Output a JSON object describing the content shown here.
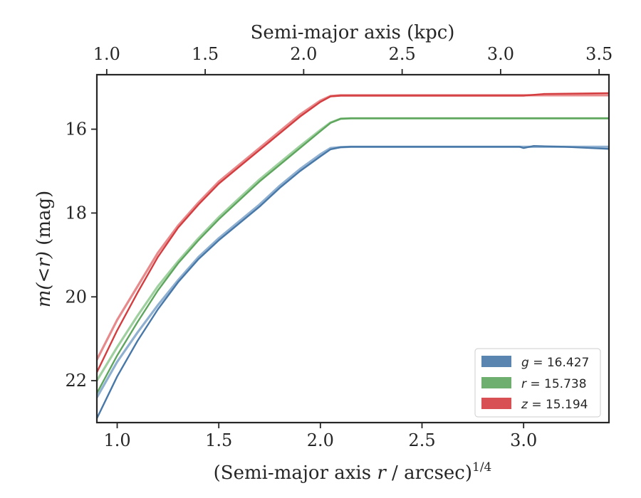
{
  "chart_data": {
    "type": "line",
    "title": "",
    "xlabel_parts": {
      "before": "(Semi-major axis ",
      "var": "r",
      "after": " / arcsec)",
      "exp": "1/4"
    },
    "ylabel_parts": {
      "m": "m",
      "mid": "(<",
      "r": "r",
      "close": ")",
      "unit": " (mag)"
    },
    "top_xlabel": "Semi-major axis (kpc)",
    "xlim": [
      0.9,
      3.42
    ],
    "ylim": [
      23.0,
      14.7
    ],
    "y_inverted": true,
    "top_xlim": [
      0.95,
      3.55
    ],
    "x_ticks": [
      1.0,
      1.5,
      2.0,
      2.5,
      3.0
    ],
    "x_tick_labels": [
      "1.0",
      "1.5",
      "2.0",
      "2.5",
      "3.0"
    ],
    "y_ticks": [
      16,
      18,
      20,
      22
    ],
    "y_tick_labels": [
      "16",
      "18",
      "20",
      "22"
    ],
    "top_x_ticks": [
      1.0,
      1.5,
      2.0,
      2.5,
      3.0,
      3.5
    ],
    "top_x_tick_labels": [
      "1.0",
      "1.5",
      "2.0",
      "2.5",
      "3.0",
      "3.5"
    ],
    "grid": false,
    "legend_position": "lower-right",
    "series": [
      {
        "name": "g = 16.427",
        "label_var": "g",
        "label_eq": " = 16.427",
        "color": "#4878a8",
        "light_color": "#8fb0d0",
        "x": [
          0.9,
          1.0,
          1.1,
          1.2,
          1.3,
          1.4,
          1.5,
          1.6,
          1.7,
          1.8,
          1.9,
          2.0,
          2.05,
          2.1,
          2.15,
          2.2,
          2.4,
          2.6,
          2.8,
          2.95,
          2.98,
          3.0,
          3.05,
          3.2,
          3.42
        ],
        "y": [
          22.9,
          21.9,
          21.05,
          20.3,
          19.65,
          19.1,
          18.65,
          18.25,
          17.85,
          17.4,
          17.0,
          16.65,
          16.48,
          16.43,
          16.42,
          16.42,
          16.42,
          16.42,
          16.42,
          16.42,
          16.42,
          16.45,
          16.4,
          16.42,
          16.47
        ],
        "model_x": [
          0.9,
          1.0,
          1.1,
          1.2,
          1.3,
          1.4,
          1.5,
          1.6,
          1.7,
          1.8,
          1.9,
          2.0,
          2.05,
          2.1,
          2.15,
          2.2,
          2.5,
          3.0,
          3.42
        ],
        "model_y": [
          22.4,
          21.55,
          20.85,
          20.2,
          19.6,
          19.05,
          18.6,
          18.2,
          17.8,
          17.35,
          16.95,
          16.6,
          16.45,
          16.43,
          16.42,
          16.42,
          16.42,
          16.42,
          16.42
        ]
      },
      {
        "name": "r = 15.738",
        "label_var": "r",
        "label_eq": " = 15.738",
        "color": "#5ea55e",
        "light_color": "#9fd09f",
        "x": [
          0.9,
          1.0,
          1.1,
          1.2,
          1.3,
          1.4,
          1.5,
          1.6,
          1.7,
          1.8,
          1.9,
          2.0,
          2.05,
          2.1,
          2.15,
          2.2,
          2.5,
          2.9,
          3.0,
          3.2,
          3.42
        ],
        "y": [
          22.3,
          21.4,
          20.6,
          19.85,
          19.2,
          18.65,
          18.15,
          17.7,
          17.25,
          16.85,
          16.45,
          16.05,
          15.85,
          15.75,
          15.74,
          15.74,
          15.74,
          15.74,
          15.74,
          15.74,
          15.74
        ],
        "model_x": [
          0.9,
          1.0,
          1.1,
          1.2,
          1.3,
          1.4,
          1.5,
          1.6,
          1.7,
          1.8,
          1.9,
          2.0,
          2.05,
          2.1,
          2.15,
          2.2,
          2.5,
          3.0,
          3.42
        ],
        "model_y": [
          22.0,
          21.2,
          20.45,
          19.75,
          19.15,
          18.6,
          18.1,
          17.65,
          17.2,
          16.8,
          16.4,
          16.02,
          15.84,
          15.75,
          15.74,
          15.74,
          15.74,
          15.74,
          15.74
        ]
      },
      {
        "name": "z = 15.194",
        "label_var": "z",
        "label_eq": " = 15.194",
        "color": "#d43d40",
        "light_color": "#e8898b",
        "x": [
          0.9,
          1.0,
          1.1,
          1.2,
          1.3,
          1.4,
          1.5,
          1.6,
          1.7,
          1.8,
          1.9,
          2.0,
          2.05,
          2.1,
          2.15,
          2.5,
          2.9,
          3.0,
          3.1,
          3.42
        ],
        "y": [
          21.8,
          20.8,
          19.9,
          19.05,
          18.35,
          17.8,
          17.3,
          16.9,
          16.5,
          16.1,
          15.7,
          15.35,
          15.22,
          15.2,
          15.2,
          15.2,
          15.2,
          15.2,
          15.16,
          15.14
        ],
        "model_x": [
          0.9,
          1.0,
          1.1,
          1.2,
          1.3,
          1.4,
          1.5,
          1.6,
          1.7,
          1.8,
          1.9,
          2.0,
          2.05,
          2.1,
          2.15,
          2.5,
          3.0,
          3.42
        ],
        "model_y": [
          21.5,
          20.55,
          19.75,
          18.95,
          18.3,
          17.75,
          17.25,
          16.85,
          16.45,
          16.05,
          15.65,
          15.32,
          15.21,
          15.19,
          15.19,
          15.19,
          15.19,
          15.19
        ]
      }
    ]
  }
}
